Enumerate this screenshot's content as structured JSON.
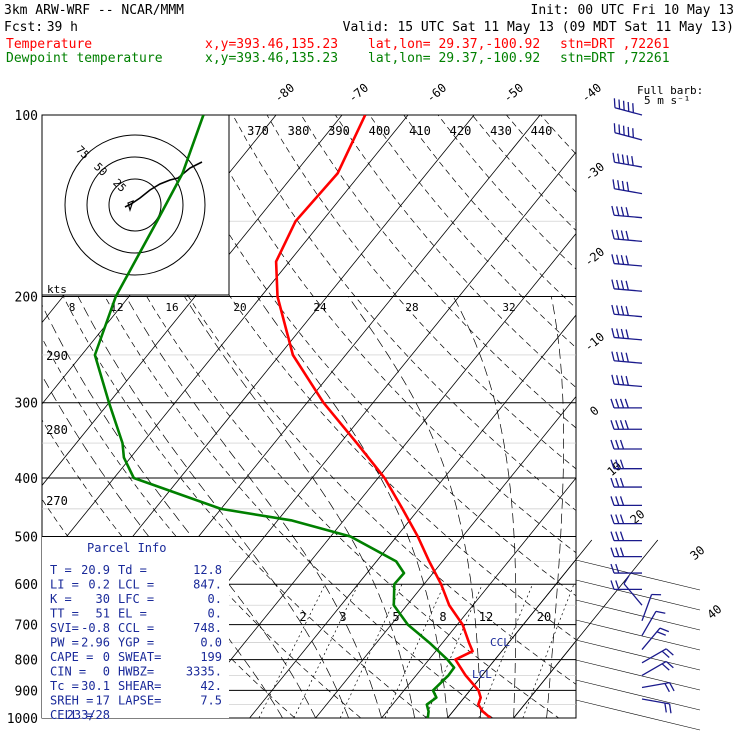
{
  "header": {
    "model": "3km ARW-WRF -- NCAR/MMM",
    "init": "Init: 00 UTC Fri 10 May 13",
    "fcst_label": "Fcst:",
    "fcst_value": "39 h",
    "valid": "Valid: 15 UTC Sat 11 May 13 (09 MDT Sat 11 May 13)",
    "temperature_line": {
      "label": "Temperature",
      "xy": "x,y=393.46,135.23",
      "latlon": "lat,lon= 29.37,-100.92",
      "stn": "stn=DRT ,72261"
    },
    "dewpoint_line": {
      "label": "Dewpoint temperature",
      "xy": "x,y=393.46,135.23",
      "latlon": "lat,lon= 29.37,-100.92",
      "stn": "stn=DRT ,72261"
    },
    "barb_key_title": "Full barb:",
    "barb_key_value": "5 m s⁻¹"
  },
  "colors": {
    "temperature": "#ff0000",
    "dewpoint": "#008000",
    "barbs": "#1a1a8c",
    "parcel_info": "#1a2a9a"
  },
  "chart_data": {
    "type": "line",
    "chart_kind": "Skew-T log-P sounding",
    "y_axis": {
      "quantity": "pressure (hPa)",
      "scale": "log",
      "range": [
        1000,
        100
      ],
      "ticks": [
        "100",
        "200",
        "300",
        "400",
        "500",
        "600",
        "700",
        "800",
        "900",
        "1000"
      ]
    },
    "isotherm_labels": [
      "-80",
      "-70",
      "-60",
      "-50",
      "-40",
      "-30",
      "-20",
      "-10",
      "0",
      "10",
      "20",
      "30",
      "40"
    ],
    "theta_labels": [
      "370",
      "380",
      "390",
      "400",
      "410",
      "420",
      "430",
      "440"
    ],
    "theta_side_labels": [
      "290",
      "280",
      "270"
    ],
    "mixing_ratio_labels": [
      "2",
      "3",
      "5",
      "8",
      "12",
      "20"
    ],
    "hodograph": {
      "kts_label": "kts",
      "ring_labels": [
        "75",
        "50",
        "25"
      ],
      "speed_axis_labels": [
        "8",
        "12",
        "16",
        "20",
        "24",
        "28",
        "32"
      ]
    },
    "level_labels": [
      "CCL",
      "LCL"
    ],
    "series": [
      {
        "name": "Temperature",
        "points": [
          [
            1000,
            26.5
          ],
          [
            975,
            24.5
          ],
          [
            950,
            23.0
          ],
          [
            925,
            22.5
          ],
          [
            900,
            21.3
          ],
          [
            850,
            17.5
          ],
          [
            800,
            14.0
          ],
          [
            775,
            15.6
          ],
          [
            750,
            14.0
          ],
          [
            700,
            10.8
          ],
          [
            650,
            6.4
          ],
          [
            600,
            2.6
          ],
          [
            550,
            -2.0
          ],
          [
            500,
            -6.8
          ],
          [
            450,
            -12.5
          ],
          [
            400,
            -19.0
          ],
          [
            350,
            -27.5
          ],
          [
            300,
            -37.5
          ],
          [
            250,
            -48.0
          ],
          [
            200,
            -57.5
          ],
          [
            175,
            -62.0
          ],
          [
            150,
            -64.0
          ],
          [
            125,
            -63.5
          ],
          [
            100,
            -66.5
          ]
        ]
      },
      {
        "name": "Dewpoint temperature",
        "points": [
          [
            1000,
            17.0
          ],
          [
            975,
            16.3
          ],
          [
            950,
            15.2
          ],
          [
            925,
            15.8
          ],
          [
            900,
            14.4
          ],
          [
            850,
            14.9
          ],
          [
            825,
            14.8
          ],
          [
            800,
            12.8
          ],
          [
            750,
            8.0
          ],
          [
            700,
            2.5
          ],
          [
            650,
            -2.0
          ],
          [
            600,
            -4.5
          ],
          [
            575,
            -4.4
          ],
          [
            550,
            -7.0
          ],
          [
            500,
            -17.0
          ],
          [
            470,
            -28.0
          ],
          [
            450,
            -40.0
          ],
          [
            400,
            -57.0
          ],
          [
            370,
            -61.0
          ],
          [
            350,
            -63.0
          ],
          [
            300,
            -70.0
          ],
          [
            250,
            -78.0
          ],
          [
            200,
            -82.0
          ],
          [
            150,
            -85.0
          ],
          [
            125,
            -87.0
          ],
          [
            100,
            -91.0
          ]
        ]
      }
    ],
    "hodograph_trace": [
      [
        125,
        207
      ],
      [
        131,
        204
      ],
      [
        140,
        198
      ],
      [
        150,
        190
      ],
      [
        160,
        184
      ],
      [
        170,
        180
      ],
      [
        178,
        178
      ],
      [
        184,
        173
      ],
      [
        190,
        168
      ],
      [
        196,
        165
      ],
      [
        202,
        162
      ]
    ],
    "wind_barbs": [
      {
        "p": 100,
        "dir": 285,
        "spd": 25
      },
      {
        "p": 110,
        "dir": 285,
        "spd": 25
      },
      {
        "p": 122,
        "dir": 280,
        "spd": 25
      },
      {
        "p": 135,
        "dir": 280,
        "spd": 22
      },
      {
        "p": 148,
        "dir": 275,
        "spd": 20
      },
      {
        "p": 162,
        "dir": 275,
        "spd": 20
      },
      {
        "p": 178,
        "dir": 275,
        "spd": 20
      },
      {
        "p": 196,
        "dir": 275,
        "spd": 20
      },
      {
        "p": 216,
        "dir": 275,
        "spd": 20
      },
      {
        "p": 236,
        "dir": 275,
        "spd": 20
      },
      {
        "p": 258,
        "dir": 275,
        "spd": 20
      },
      {
        "p": 282,
        "dir": 275,
        "spd": 20
      },
      {
        "p": 306,
        "dir": 270,
        "spd": 20
      },
      {
        "p": 332,
        "dir": 270,
        "spd": 20
      },
      {
        "p": 358,
        "dir": 270,
        "spd": 15
      },
      {
        "p": 386,
        "dir": 270,
        "spd": 15
      },
      {
        "p": 414,
        "dir": 270,
        "spd": 15
      },
      {
        "p": 444,
        "dir": 270,
        "spd": 15
      },
      {
        "p": 476,
        "dir": 270,
        "spd": 15
      },
      {
        "p": 508,
        "dir": 270,
        "spd": 15
      },
      {
        "p": 540,
        "dir": 270,
        "spd": 15
      },
      {
        "p": 575,
        "dir": 270,
        "spd": 10
      },
      {
        "p": 612,
        "dir": 270,
        "spd": 10
      },
      {
        "p": 650,
        "dir": 320,
        "spd": 5
      },
      {
        "p": 690,
        "dir": 20,
        "spd": 5
      },
      {
        "p": 730,
        "dir": 30,
        "spd": 5
      },
      {
        "p": 770,
        "dir": 40,
        "spd": 10
      },
      {
        "p": 810,
        "dir": 60,
        "spd": 10
      },
      {
        "p": 850,
        "dir": 60,
        "spd": 10
      },
      {
        "p": 890,
        "dir": 80,
        "spd": 10
      },
      {
        "p": 930,
        "dir": 100,
        "spd": 10
      }
    ]
  },
  "parcel_info": {
    "title": "Parcel Info",
    "rows": [
      [
        "T  =",
        "20.9",
        "Td =",
        "12.8"
      ],
      [
        "LI =",
        "0.2",
        "LCL =",
        "847."
      ],
      [
        "K  =",
        "30",
        "LFC =",
        "0."
      ],
      [
        "TT =",
        "51",
        "EL =",
        "0."
      ],
      [
        "SVI=",
        "-0.8",
        "CCL =",
        "748."
      ],
      [
        "PW =",
        "2.96",
        "YGP =",
        "0.0"
      ],
      [
        "CAPE =",
        "0",
        "SWEAT=",
        "199"
      ],
      [
        "CIN =",
        "0",
        "HWBZ=",
        "3335."
      ],
      [
        "Tc =",
        "30.1",
        "SHEAR=",
        "42."
      ],
      [
        "SREH =",
        "17",
        "LAPSE=",
        "7.5"
      ],
      [
        "CELL =",
        "233/28",
        "",
        ""
      ]
    ]
  }
}
